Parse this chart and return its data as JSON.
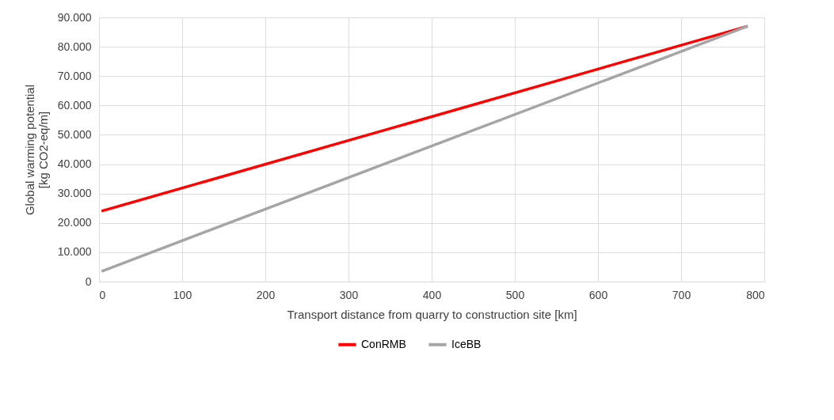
{
  "chart_data": {
    "type": "line",
    "xlabel": "Transport distance from quarry to construction site [km]",
    "ylabel": "Global warming potential\n[kg CO2-eq/m]",
    "x": [
      3,
      780
    ],
    "series": [
      {
        "name": "ConRMB",
        "color": "#ff0000",
        "values": [
          24000,
          87000
        ]
      },
      {
        "name": "IceBB",
        "color": "#a5a5a5",
        "values": [
          3500,
          87000
        ]
      }
    ],
    "xlim": [
      0,
      800
    ],
    "xticks": [
      0,
      100,
      200,
      300,
      400,
      500,
      600,
      700,
      800
    ],
    "ylim": [
      0,
      90000
    ],
    "yticks": [
      0,
      {
        "value": 10000,
        "label": "10.000"
      },
      {
        "value": 20000,
        "label": "20.000"
      },
      {
        "value": 30000,
        "label": "30.000"
      },
      {
        "value": 40000,
        "label": "40.000"
      },
      {
        "value": 50000,
        "label": "50.000"
      },
      {
        "value": 60000,
        "label": "60.000"
      },
      {
        "value": 70000,
        "label": "70.000"
      },
      {
        "value": 80000,
        "label": "80.000"
      },
      {
        "value": 90000,
        "label": "90.000"
      }
    ],
    "grid": true,
    "legend": "bottom",
    "marker": "none",
    "line_style": "solid"
  }
}
